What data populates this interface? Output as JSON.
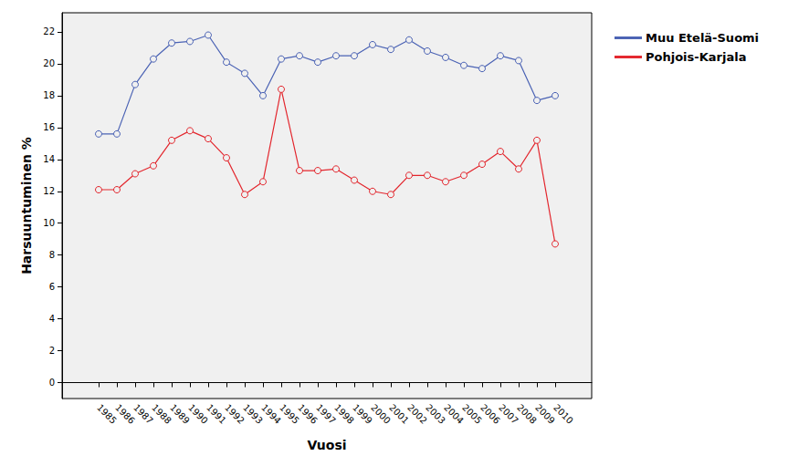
{
  "chart_data": {
    "type": "line",
    "x_label": "Vuosi",
    "y_label": "Harsuuntuminen %",
    "x": [
      1985,
      1986,
      1987,
      1988,
      1989,
      1990,
      1991,
      1992,
      1993,
      1994,
      1995,
      1996,
      1997,
      1998,
      1999,
      2000,
      2001,
      2002,
      2003,
      2004,
      2005,
      2006,
      2007,
      2008,
      2009,
      2010
    ],
    "series": [
      {
        "name": "Muu Etelä-Suomi",
        "color": "#4a62b4",
        "marker": "circle",
        "values": [
          15.6,
          15.6,
          18.7,
          20.3,
          21.3,
          21.4,
          21.8,
          20.1,
          19.4,
          18.0,
          20.3,
          20.5,
          20.1,
          20.5,
          20.5,
          21.2,
          20.9,
          21.5,
          20.8,
          20.4,
          19.9,
          19.7,
          20.5,
          20.2,
          17.7,
          18.0
        ]
      },
      {
        "name": "Pohjois-Karjala",
        "color": "#e3262d",
        "marker": "circle",
        "values": [
          12.1,
          12.1,
          13.1,
          13.6,
          15.2,
          15.8,
          15.3,
          14.1,
          11.8,
          12.6,
          18.4,
          13.3,
          13.3,
          13.4,
          12.7,
          12.0,
          11.8,
          13.0,
          13.0,
          12.6,
          13.0,
          13.7,
          14.5,
          13.4,
          15.2,
          8.7
        ]
      }
    ],
    "xlim": [
      1983,
      2012
    ],
    "xticks": [
      1985,
      1986,
      1987,
      1988,
      1989,
      1990,
      1991,
      1992,
      1993,
      1994,
      1995,
      1996,
      1997,
      1998,
      1999,
      2000,
      2001,
      2002,
      2003,
      2004,
      2005,
      2006,
      2007,
      2008,
      2009,
      2010
    ],
    "ylim": [
      -1,
      23.2
    ],
    "yticks": [
      0,
      2,
      4,
      6,
      8,
      10,
      12,
      14,
      16,
      18,
      20,
      22
    ],
    "grid": false,
    "legend": "top right"
  }
}
